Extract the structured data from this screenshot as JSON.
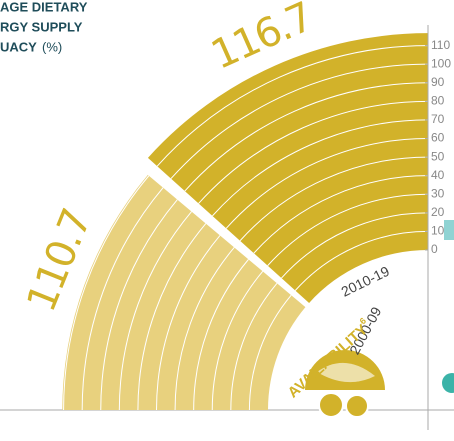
{
  "chart_data": {
    "type": "radial_bar",
    "title_lines": [
      "AGE DIETARY",
      "RGY SUPPLY",
      "UACY"
    ],
    "title_unit": "(%)",
    "categories": [
      "2000-09",
      "2010-19"
    ],
    "values": [
      110.7,
      116.7
    ],
    "colors": [
      "#e8d17e",
      "#d2b22a"
    ],
    "section_label": "AVAILABILITY",
    "section_note": "6",
    "ylim": [
      0,
      120
    ],
    "yticks": [
      0,
      10,
      20,
      30,
      40,
      50,
      60,
      70,
      80,
      90,
      100,
      110
    ],
    "grid": true
  }
}
